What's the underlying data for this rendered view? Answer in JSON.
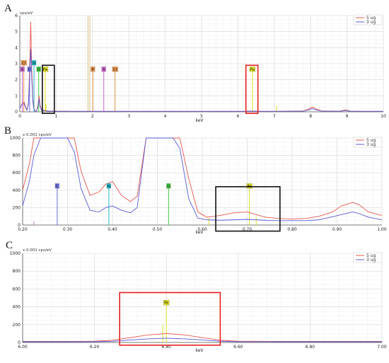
{
  "chart_data": [
    {
      "panel": "A",
      "type": "line",
      "y_unit": "cps/eV",
      "xlabel": "keV",
      "xlim": [
        0,
        10
      ],
      "ylim": [
        0,
        6
      ],
      "x_ticks": [
        0,
        1,
        2,
        3,
        4,
        5,
        6,
        7,
        8,
        9,
        10
      ],
      "y_ticks": [
        0,
        1,
        2,
        3,
        4,
        5,
        6
      ],
      "grid": true,
      "legend_position": "top-right",
      "series": [
        {
          "name": "5 ug",
          "color": "#e8574f",
          "x": [
            0.0,
            0.04,
            0.08,
            0.12,
            0.16,
            0.2,
            0.24,
            0.28,
            0.3,
            0.33,
            0.36,
            0.39,
            0.42,
            0.46,
            0.5,
            0.53,
            0.56,
            0.6,
            0.65,
            0.7,
            0.75,
            0.8,
            0.9,
            1.0,
            1.2,
            1.5,
            2.0,
            2.6,
            3.5,
            4.5,
            5.5,
            6.2,
            6.4,
            6.6,
            7.0,
            7.8,
            7.95,
            8.05,
            8.15,
            8.3,
            8.8,
            8.95,
            9.1,
            9.5,
            10.0
          ],
          "y": [
            0.2,
            0.4,
            0.6,
            0.6,
            0.3,
            0.1,
            0.6,
            3.5,
            5.6,
            2.5,
            0.8,
            0.2,
            0.05,
            0.05,
            0.4,
            1.0,
            0.4,
            0.1,
            0.1,
            0.08,
            0.06,
            0.05,
            0.04,
            0.04,
            0.04,
            0.03,
            0.03,
            0.03,
            0.03,
            0.03,
            0.03,
            0.03,
            0.05,
            0.03,
            0.03,
            0.05,
            0.18,
            0.3,
            0.18,
            0.05,
            0.04,
            0.12,
            0.04,
            0.03,
            0.03
          ]
        },
        {
          "name": "3 ug",
          "color": "#5a5ad6",
          "x": [
            0.0,
            0.04,
            0.08,
            0.12,
            0.16,
            0.2,
            0.24,
            0.28,
            0.3,
            0.33,
            0.36,
            0.39,
            0.42,
            0.46,
            0.5,
            0.53,
            0.56,
            0.6,
            0.65,
            0.7,
            0.75,
            0.8,
            0.9,
            1.0,
            1.2,
            1.5,
            2.0,
            2.6,
            3.5,
            4.5,
            5.5,
            6.2,
            6.4,
            6.6,
            7.0,
            7.8,
            7.95,
            8.05,
            8.15,
            8.3,
            8.8,
            8.95,
            9.1,
            9.5,
            10.0
          ],
          "y": [
            0.2,
            0.4,
            0.5,
            0.5,
            0.25,
            0.1,
            0.5,
            2.7,
            3.9,
            2.0,
            0.6,
            0.15,
            0.04,
            0.04,
            0.3,
            0.8,
            0.3,
            0.08,
            0.08,
            0.06,
            0.05,
            0.04,
            0.03,
            0.03,
            0.03,
            0.03,
            0.03,
            0.03,
            0.03,
            0.03,
            0.03,
            0.03,
            0.04,
            0.03,
            0.03,
            0.04,
            0.12,
            0.2,
            0.12,
            0.04,
            0.03,
            0.08,
            0.03,
            0.03,
            0.03
          ]
        }
      ],
      "element_markers": [
        {
          "label": "S",
          "x": 0.07,
          "color": "#cc66cc",
          "line_top": 2.5
        },
        {
          "label": "Cl",
          "x": 0.11,
          "color": "#e8944a",
          "line_top": 2.9
        },
        {
          "label": "C",
          "x": 0.27,
          "color": "#7070e0",
          "line_top": 2.5
        },
        {
          "label": "N",
          "x": 0.39,
          "color": "#22bbcc",
          "line_top": 2.9
        },
        {
          "label": "O",
          "x": 0.52,
          "color": "#44cc44",
          "line_top": 2.5
        },
        {
          "label": "Fe",
          "x": 0.7,
          "color": "#dddd22",
          "line_top": 2.5
        },
        {
          "label": "P",
          "x": 2.01,
          "color": "#e8944a",
          "line_top": 2.5
        },
        {
          "label": "S",
          "x": 2.31,
          "color": "#cc66cc",
          "line_top": 2.5
        },
        {
          "label": "Cl",
          "x": 2.62,
          "color": "#e8944a",
          "line_top": 2.5
        },
        {
          "label": "Fe",
          "x": 6.4,
          "color": "#dddd22",
          "line_top": 2.5
        }
      ],
      "extra_lines": [
        {
          "x": 7.06,
          "top": 0.35,
          "color": "#dddd22"
        },
        {
          "x": 0.72,
          "top": 0.5,
          "color": "#dddd22"
        }
      ],
      "highlight_band": {
        "x0": 1.85,
        "x1": 1.95
      },
      "boxes": [
        {
          "x0": 0.62,
          "x1": 0.95,
          "y0": -0.1,
          "y1": 2.9,
          "color": "#111111"
        },
        {
          "x0": 6.22,
          "x1": 6.55,
          "y0": -0.1,
          "y1": 2.9,
          "color": "#e82020"
        }
      ]
    },
    {
      "panel": "B",
      "type": "line",
      "y_unit": "x 0.001 cps/eV",
      "xlabel": "keV",
      "xlim": [
        0.2,
        1.0
      ],
      "ylim": [
        0,
        1000
      ],
      "x_ticks": [
        "0.20",
        "0.30",
        "0.40",
        "0.50",
        "0.60",
        "0.70",
        "0.80",
        "0.90",
        "1.00"
      ],
      "y_ticks": [
        0,
        200,
        400,
        600,
        800,
        1000
      ],
      "grid": true,
      "legend_position": "top-right",
      "series": [
        {
          "name": "5 ug",
          "color": "#e8574f",
          "x": [
            0.2,
            0.215,
            0.225,
            0.24,
            0.26,
            0.28,
            0.3,
            0.315,
            0.33,
            0.35,
            0.37,
            0.385,
            0.4,
            0.42,
            0.44,
            0.455,
            0.475,
            0.49,
            0.505,
            0.515,
            0.525,
            0.535,
            0.55,
            0.57,
            0.59,
            0.61,
            0.64,
            0.67,
            0.7,
            0.72,
            0.74,
            0.77,
            0.8,
            0.83,
            0.86,
            0.89,
            0.91,
            0.935,
            0.95,
            0.97,
            1.0
          ],
          "y": [
            400,
            700,
            1000,
            1000,
            1000,
            1000,
            1000,
            1000,
            620,
            340,
            380,
            470,
            500,
            340,
            270,
            330,
            1000,
            1000,
            1000,
            1000,
            1000,
            1000,
            1000,
            530,
            150,
            90,
            110,
            140,
            150,
            120,
            90,
            75,
            70,
            75,
            100,
            150,
            220,
            260,
            230,
            150,
            110
          ]
        },
        {
          "name": "3 ug",
          "color": "#5a5ad6",
          "x": [
            0.2,
            0.215,
            0.225,
            0.24,
            0.26,
            0.28,
            0.3,
            0.315,
            0.33,
            0.35,
            0.37,
            0.385,
            0.4,
            0.42,
            0.44,
            0.455,
            0.475,
            0.49,
            0.505,
            0.515,
            0.525,
            0.535,
            0.55,
            0.57,
            0.59,
            0.61,
            0.64,
            0.67,
            0.7,
            0.72,
            0.74,
            0.77,
            0.8,
            0.83,
            0.86,
            0.89,
            0.91,
            0.935,
            0.95,
            0.97,
            1.0
          ],
          "y": [
            220,
            500,
            800,
            1000,
            1000,
            1000,
            1000,
            840,
            420,
            170,
            150,
            200,
            220,
            170,
            140,
            200,
            1000,
            1000,
            1000,
            1000,
            1000,
            1000,
            880,
            300,
            80,
            60,
            55,
            60,
            65,
            60,
            55,
            50,
            50,
            50,
            60,
            95,
            120,
            150,
            130,
            90,
            60
          ]
        }
      ],
      "element_markers": [
        {
          "label": "C",
          "x": 0.277,
          "color": "#7070e0",
          "line_top": 420
        },
        {
          "label": "N",
          "x": 0.392,
          "color": "#22bbcc",
          "line_top": 420
        },
        {
          "label": "O",
          "x": 0.525,
          "color": "#44cc44",
          "line_top": 420
        },
        {
          "label": "Fe",
          "x": 0.705,
          "color": "#dddd22",
          "line_top": 420
        }
      ],
      "extra_lines": [
        {
          "x": 0.615,
          "top": 80,
          "color": "#dddd22"
        },
        {
          "x": 0.72,
          "top": 90,
          "color": "#dddd22"
        },
        {
          "x": 0.225,
          "top": 40,
          "color": "#cc66cc"
        }
      ],
      "boxes": [
        {
          "x0": 0.63,
          "x1": 0.773,
          "y0": -70,
          "y1": 440,
          "color": "#111111"
        }
      ]
    },
    {
      "panel": "C",
      "type": "line",
      "y_unit": "x 0.001 cps/eV",
      "xlabel": "keV",
      "xlim": [
        6.0,
        7.0
      ],
      "ylim": [
        0,
        1000
      ],
      "x_ticks": [
        "6.00",
        "6.20",
        "6.40",
        "6.60",
        "6.80",
        "7.00"
      ],
      "y_ticks": [
        0,
        200,
        400,
        600,
        800,
        1000
      ],
      "grid": true,
      "legend_position": "top-right",
      "series": [
        {
          "name": "5 ug",
          "color": "#e8574f",
          "x": [
            6.0,
            6.1,
            6.2,
            6.25,
            6.3,
            6.35,
            6.4,
            6.45,
            6.5,
            6.55,
            6.6,
            6.7,
            6.8,
            6.9,
            7.0
          ],
          "y": [
            12,
            12,
            14,
            25,
            55,
            85,
            100,
            85,
            55,
            25,
            14,
            12,
            12,
            12,
            12
          ]
        },
        {
          "name": "3 ug",
          "color": "#5a5ad6",
          "x": [
            6.0,
            6.1,
            6.2,
            6.25,
            6.3,
            6.35,
            6.4,
            6.45,
            6.5,
            6.55,
            6.6,
            6.7,
            6.8,
            6.9,
            7.0
          ],
          "y": [
            8,
            8,
            9,
            14,
            28,
            40,
            48,
            40,
            28,
            14,
            9,
            8,
            8,
            8,
            8
          ]
        }
      ],
      "element_markers": [
        {
          "label": "Fe",
          "x": 6.4,
          "color": "#dddd22",
          "line_top": 420
        }
      ],
      "extra_lines": [
        {
          "x": 6.39,
          "top": 200,
          "color": "#dddd22"
        }
      ],
      "boxes": [
        {
          "x0": 6.27,
          "x1": 6.55,
          "y0": -30,
          "y1": 560,
          "color": "#e82020"
        }
      ]
    }
  ]
}
